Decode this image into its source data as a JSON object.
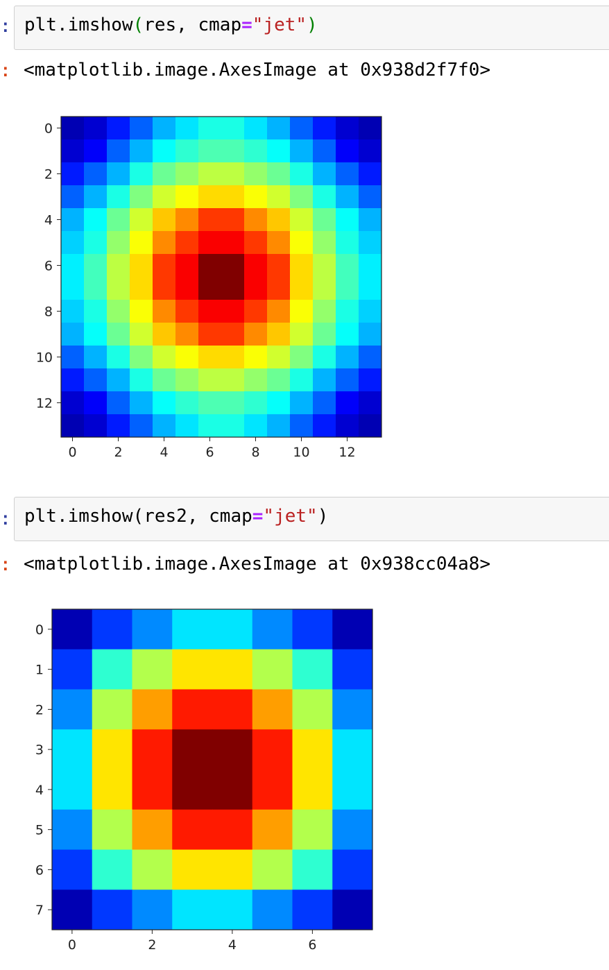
{
  "cells": [
    {
      "input": {
        "func": "plt.imshow",
        "arg": "res",
        "kw": "cmap",
        "value": "\"jet\""
      },
      "output": "<matplotlib.image.AxesImage at 0x938d2f7f0>",
      "chart_data": {
        "type": "heatmap",
        "colormap": "jet",
        "xticks": [
          0,
          2,
          4,
          6,
          8,
          10,
          12
        ],
        "yticks": [
          0,
          2,
          4,
          6,
          8,
          10,
          12
        ],
        "rows": 14,
        "cols": 14,
        "values": [
          [
            0.05,
            0.08,
            0.15,
            0.22,
            0.3,
            0.35,
            0.4,
            0.4,
            0.35,
            0.3,
            0.22,
            0.15,
            0.08,
            0.05
          ],
          [
            0.08,
            0.12,
            0.22,
            0.3,
            0.38,
            0.42,
            0.45,
            0.45,
            0.42,
            0.38,
            0.3,
            0.22,
            0.12,
            0.08
          ],
          [
            0.15,
            0.22,
            0.3,
            0.4,
            0.48,
            0.52,
            0.56,
            0.56,
            0.52,
            0.48,
            0.4,
            0.3,
            0.22,
            0.15
          ],
          [
            0.22,
            0.3,
            0.4,
            0.5,
            0.58,
            0.62,
            0.66,
            0.66,
            0.62,
            0.58,
            0.5,
            0.4,
            0.3,
            0.22
          ],
          [
            0.3,
            0.38,
            0.48,
            0.58,
            0.68,
            0.74,
            0.82,
            0.82,
            0.74,
            0.68,
            0.58,
            0.48,
            0.38,
            0.3
          ],
          [
            0.33,
            0.4,
            0.52,
            0.62,
            0.74,
            0.82,
            0.88,
            0.88,
            0.82,
            0.74,
            0.62,
            0.52,
            0.4,
            0.33
          ],
          [
            0.36,
            0.44,
            0.56,
            0.66,
            0.82,
            0.88,
            1.0,
            1.0,
            0.88,
            0.82,
            0.66,
            0.56,
            0.44,
            0.36
          ],
          [
            0.36,
            0.44,
            0.56,
            0.66,
            0.82,
            0.88,
            1.0,
            1.0,
            0.88,
            0.82,
            0.66,
            0.56,
            0.44,
            0.36
          ],
          [
            0.33,
            0.4,
            0.52,
            0.62,
            0.74,
            0.82,
            0.88,
            0.88,
            0.82,
            0.74,
            0.62,
            0.52,
            0.4,
            0.33
          ],
          [
            0.3,
            0.38,
            0.48,
            0.58,
            0.68,
            0.74,
            0.82,
            0.82,
            0.74,
            0.68,
            0.58,
            0.48,
            0.38,
            0.3
          ],
          [
            0.22,
            0.3,
            0.4,
            0.5,
            0.58,
            0.62,
            0.66,
            0.66,
            0.62,
            0.58,
            0.5,
            0.4,
            0.3,
            0.22
          ],
          [
            0.15,
            0.22,
            0.3,
            0.4,
            0.48,
            0.52,
            0.56,
            0.56,
            0.52,
            0.48,
            0.4,
            0.3,
            0.22,
            0.15
          ],
          [
            0.08,
            0.12,
            0.22,
            0.3,
            0.38,
            0.42,
            0.45,
            0.45,
            0.42,
            0.38,
            0.3,
            0.22,
            0.12,
            0.08
          ],
          [
            0.05,
            0.08,
            0.15,
            0.22,
            0.3,
            0.35,
            0.4,
            0.4,
            0.35,
            0.3,
            0.22,
            0.15,
            0.08,
            0.05
          ]
        ]
      }
    },
    {
      "input": {
        "func": "plt.imshow",
        "arg": "res2",
        "kw": "cmap",
        "value": "\"jet\""
      },
      "output": "<matplotlib.image.AxesImage at 0x938cc04a8>",
      "chart_data": {
        "type": "heatmap",
        "colormap": "jet",
        "xticks": [
          0,
          2,
          4,
          6
        ],
        "yticks": [
          0,
          1,
          2,
          3,
          4,
          5,
          6,
          7
        ],
        "rows": 8,
        "cols": 8,
        "values": [
          [
            0.05,
            0.18,
            0.26,
            0.35,
            0.35,
            0.26,
            0.18,
            0.05
          ],
          [
            0.18,
            0.42,
            0.55,
            0.65,
            0.65,
            0.55,
            0.42,
            0.18
          ],
          [
            0.26,
            0.55,
            0.72,
            0.85,
            0.85,
            0.72,
            0.55,
            0.26
          ],
          [
            0.35,
            0.65,
            0.85,
            1.0,
            1.0,
            0.85,
            0.65,
            0.35
          ],
          [
            0.35,
            0.65,
            0.85,
            1.0,
            1.0,
            0.85,
            0.65,
            0.35
          ],
          [
            0.26,
            0.55,
            0.72,
            0.85,
            0.85,
            0.72,
            0.55,
            0.26
          ],
          [
            0.18,
            0.42,
            0.55,
            0.65,
            0.65,
            0.55,
            0.42,
            0.18
          ],
          [
            0.05,
            0.18,
            0.26,
            0.35,
            0.35,
            0.26,
            0.18,
            0.05
          ]
        ]
      }
    }
  ],
  "prompt_mark": ":"
}
